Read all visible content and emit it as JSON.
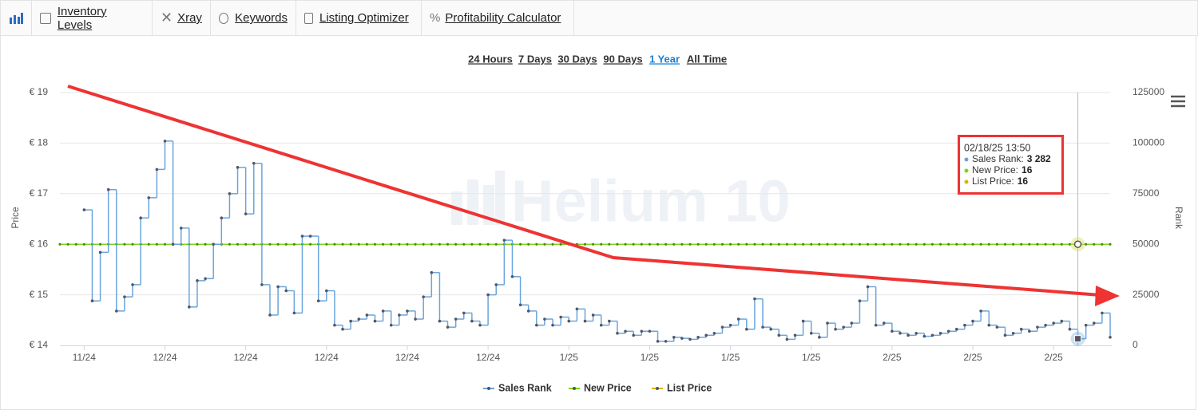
{
  "toolbar": {
    "tabs": [
      "Inventory Levels",
      "Xray",
      "Keywords",
      "Listing Optimizer",
      "Profitability Calculator"
    ]
  },
  "ranges": {
    "items": [
      "24 Hours",
      "7 Days",
      "30 Days",
      "90 Days",
      "1 Year",
      "All Time"
    ],
    "active": 4
  },
  "watermark": "Helium 10",
  "chart_data": {
    "type": "step-line",
    "ylabel": "Price",
    "y2label": "Rank",
    "ylim": [
      14,
      19
    ],
    "yticks": [
      {
        "value": 14,
        "label": "€ 14"
      },
      {
        "value": 15,
        "label": "€ 15"
      },
      {
        "value": 16,
        "label": "€ 16"
      },
      {
        "value": 17,
        "label": "€ 17"
      },
      {
        "value": 18,
        "label": "€ 18"
      },
      {
        "value": 19,
        "label": "€ 19"
      }
    ],
    "y2lim": [
      0,
      125000
    ],
    "y2ticks": [
      0,
      25000,
      50000,
      75000,
      100000,
      125000
    ],
    "grid": true,
    "legend": "bottom",
    "categories": [
      null,
      null,
      null,
      "11/24",
      null,
      null,
      null,
      null,
      null,
      null,
      null,
      null,
      null,
      "12/24",
      null,
      null,
      null,
      null,
      null,
      null,
      null,
      null,
      null,
      "12/24",
      null,
      null,
      null,
      null,
      null,
      null,
      null,
      null,
      null,
      "12/24",
      null,
      null,
      null,
      null,
      null,
      null,
      null,
      null,
      null,
      "12/24",
      null,
      null,
      null,
      null,
      null,
      null,
      null,
      null,
      null,
      "12/24",
      null,
      null,
      null,
      null,
      null,
      null,
      null,
      null,
      null,
      "1/25",
      null,
      null,
      null,
      null,
      null,
      null,
      null,
      null,
      null,
      "1/25",
      null,
      null,
      null,
      null,
      null,
      null,
      null,
      null,
      null,
      "1/25",
      null,
      null,
      null,
      null,
      null,
      null,
      null,
      null,
      null,
      "1/25",
      null,
      null,
      null,
      null,
      null,
      null,
      null,
      null,
      null,
      "2/25",
      null,
      null,
      null,
      null,
      null,
      null,
      null,
      null,
      null,
      "2/25",
      null,
      null,
      null,
      null,
      null,
      null,
      null,
      null,
      null,
      "2/25",
      null,
      null,
      null,
      null,
      null,
      null,
      null
    ],
    "series": [
      {
        "name": "Sales Rank",
        "color": "#6aa5dc",
        "axis": "y2",
        "values": [
          null,
          null,
          null,
          67000,
          22000,
          46000,
          77000,
          17000,
          24000,
          30000,
          63000,
          73000,
          87000,
          101000,
          50000,
          58000,
          19000,
          32000,
          33000,
          50000,
          63000,
          75000,
          88000,
          65000,
          90000,
          30000,
          15000,
          29000,
          27000,
          16000,
          54000,
          54000,
          22000,
          27000,
          10000,
          8000,
          12000,
          13000,
          15000,
          12000,
          17000,
          10000,
          15000,
          17000,
          13000,
          24000,
          36000,
          12000,
          9000,
          13000,
          16000,
          12000,
          10000,
          25000,
          30000,
          52000,
          34000,
          20000,
          17000,
          10000,
          13000,
          10000,
          14000,
          12000,
          18000,
          12000,
          15000,
          10000,
          12000,
          6000,
          7000,
          5000,
          7000,
          7000,
          2000,
          2000,
          4000,
          3500,
          3000,
          4000,
          5000,
          6000,
          9000,
          10000,
          13000,
          8000,
          23000,
          9000,
          8000,
          5000,
          3000,
          5000,
          12000,
          6000,
          4000,
          11000,
          8000,
          9000,
          11000,
          22000,
          29000,
          10000,
          11000,
          7000,
          6000,
          5000,
          6000,
          4500,
          5000,
          6000,
          7000,
          8000,
          10000,
          12000,
          17000,
          10000,
          9000,
          5000,
          6000,
          8000,
          7000,
          9000,
          10000,
          11000,
          12000,
          8000,
          3282,
          10000,
          11000,
          16000,
          4000
        ]
      },
      {
        "name": "New Price",
        "color": "#7ed321",
        "values": [
          16,
          16,
          16,
          16,
          16,
          16,
          16,
          16,
          16,
          16,
          16,
          16,
          16,
          16,
          16,
          16,
          16,
          16,
          16,
          16,
          16,
          16,
          16,
          16,
          16,
          16,
          16,
          16,
          16,
          16,
          16,
          16,
          16,
          16,
          16,
          16,
          16,
          16,
          16,
          16,
          16,
          16,
          16,
          16,
          16,
          16,
          16,
          16,
          16,
          16,
          16,
          16,
          16,
          16,
          16,
          16,
          16,
          16,
          16,
          16,
          16,
          16,
          16,
          16,
          16,
          16,
          16,
          16,
          16,
          16,
          16,
          16,
          16,
          16,
          16,
          16,
          16,
          16,
          16,
          16,
          16,
          16,
          16,
          16,
          16,
          16,
          16,
          16,
          16,
          16,
          16,
          16,
          16,
          16,
          16,
          16,
          16,
          16,
          16,
          16,
          16,
          16,
          16,
          16,
          16,
          16,
          16,
          16,
          16,
          16,
          16,
          16,
          16,
          16,
          16,
          16,
          16,
          16,
          16,
          16,
          16,
          16,
          16,
          16,
          16,
          16,
          16,
          16,
          16,
          16,
          16
        ]
      },
      {
        "name": "List Price",
        "color": "#d9b300",
        "values": [
          16,
          16,
          16,
          16,
          16,
          16,
          16,
          16,
          16,
          16,
          16,
          16,
          16,
          16,
          16,
          16,
          16,
          16,
          16,
          16,
          16,
          16,
          16,
          16,
          16,
          16,
          16,
          16,
          16,
          16,
          16,
          16,
          16,
          16,
          16,
          16,
          16,
          16,
          16,
          16,
          16,
          16,
          16,
          16,
          16,
          16,
          16,
          16,
          16,
          16,
          16,
          16,
          16,
          16,
          16,
          16,
          16,
          16,
          16,
          16,
          16,
          16,
          16,
          16,
          16,
          16,
          16,
          16,
          16,
          16,
          16,
          16,
          16,
          16,
          16,
          16,
          16,
          16,
          16,
          16,
          16,
          16,
          16,
          16,
          16,
          16,
          16,
          16,
          16,
          16,
          16,
          16,
          16,
          16,
          16,
          16,
          16,
          16,
          16,
          16,
          16,
          16,
          16,
          16,
          16,
          16,
          16,
          16,
          16,
          16,
          16,
          16,
          16,
          16,
          16,
          16,
          16,
          16,
          16,
          16,
          16,
          16,
          16,
          16,
          16,
          16,
          16,
          16,
          16,
          16,
          16
        ]
      }
    ],
    "tooltip": {
      "index": 126,
      "date": "02/18/25 13:50",
      "rows": [
        {
          "label": "Sales Rank:",
          "value": "3 282"
        },
        {
          "label": "New Price:",
          "value": "16"
        },
        {
          "label": "List Price:",
          "value": "16"
        }
      ]
    }
  }
}
